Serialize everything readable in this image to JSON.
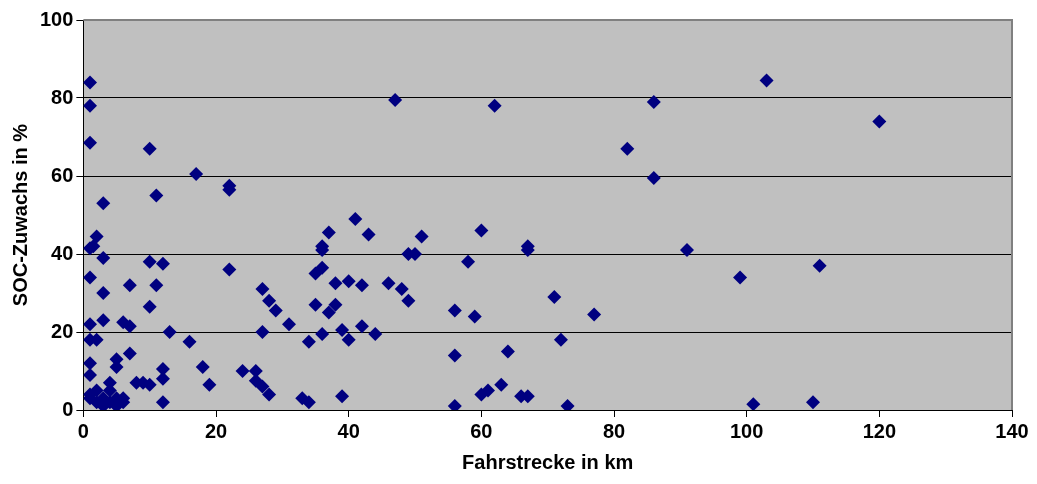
{
  "chart_data": {
    "type": "scatter",
    "xlabel": "Fahrstrecke in km",
    "ylabel": "SOC-Zuwachs in %",
    "xlim": [
      0,
      140
    ],
    "xticks": [
      0,
      20,
      40,
      60,
      80,
      100,
      120,
      140
    ],
    "ylim": [
      0,
      100
    ],
    "yticks": [
      0,
      20,
      40,
      60,
      80,
      100
    ],
    "grid": "y",
    "marker": "diamond",
    "legend": false,
    "series": [
      {
        "color": "#000080",
        "x": [
          1,
          1,
          1,
          1,
          1,
          1,
          1,
          1,
          1,
          2,
          2,
          1.5,
          3,
          3,
          3,
          3,
          1,
          1,
          2,
          2,
          3,
          3,
          4,
          4,
          4,
          5,
          5,
          5,
          5,
          6,
          6,
          6,
          7,
          7,
          7,
          8,
          9,
          10,
          10,
          10,
          10,
          11,
          11,
          12,
          12,
          12,
          12,
          13,
          16,
          17,
          18,
          19,
          22,
          22,
          22,
          24,
          26,
          26,
          27,
          27,
          27,
          28,
          28,
          29,
          31,
          33,
          34,
          34,
          35,
          35,
          36,
          36,
          36,
          36,
          37,
          37,
          38,
          38,
          39,
          39,
          40,
          40,
          41,
          42,
          42,
          43,
          44,
          46,
          47,
          48,
          49,
          49,
          50,
          51,
          56,
          56,
          56,
          58,
          59,
          60,
          60,
          61,
          62,
          63,
          64,
          66,
          67,
          67,
          67,
          71,
          72,
          73,
          77,
          82,
          86,
          86,
          91,
          99,
          101,
          103,
          110,
          111,
          120
        ],
        "values": [
          84,
          78,
          68.5,
          41.5,
          34,
          22,
          18,
          12,
          9,
          18,
          44.5,
          42,
          53,
          39,
          30,
          23,
          4,
          3,
          2,
          5,
          1,
          3,
          2,
          5,
          7,
          1,
          3,
          11,
          13,
          2,
          3,
          22.5,
          21.5,
          14.5,
          32,
          7,
          7,
          67,
          38,
          26.5,
          6.5,
          55,
          32,
          37.5,
          10.5,
          8,
          2,
          20,
          17.5,
          60.5,
          11,
          6.5,
          57.5,
          56.5,
          36,
          10,
          10,
          7.5,
          31,
          20,
          6,
          28,
          4,
          25.5,
          22,
          3,
          2,
          17.5,
          35,
          27,
          42,
          41,
          36.5,
          19.5,
          45.5,
          25,
          32.5,
          27,
          3.5,
          20.5,
          33,
          18,
          49,
          32,
          21.5,
          45,
          19.5,
          32.5,
          79.5,
          31,
          40,
          28,
          40,
          44.5,
          25.5,
          14,
          1,
          38,
          24,
          46,
          4,
          5,
          78,
          6.5,
          15,
          3.5,
          42,
          41,
          3.5,
          29,
          18,
          1,
          24.5,
          67,
          79,
          59.5,
          41,
          34,
          1.5,
          84.5,
          2,
          37,
          74
        ]
      }
    ]
  }
}
